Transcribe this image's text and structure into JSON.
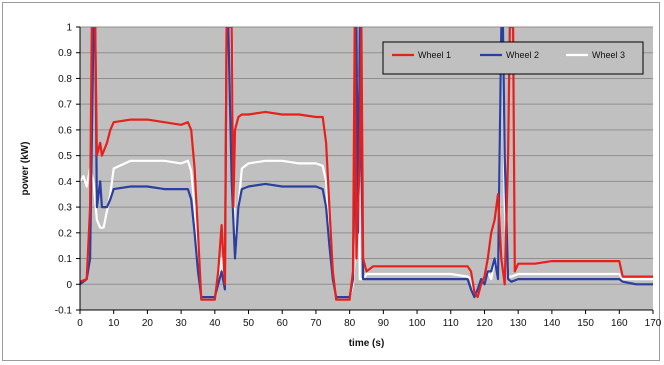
{
  "chart_data": {
    "type": "line",
    "title": "",
    "xlabel": "time (s)",
    "ylabel": "power (kW)",
    "xlim": [
      0,
      170
    ],
    "ylim": [
      -0.1,
      1
    ],
    "xticks": [
      0,
      10,
      20,
      30,
      40,
      50,
      60,
      70,
      80,
      90,
      100,
      110,
      120,
      130,
      140,
      150,
      160,
      170
    ],
    "yticks": [
      -0.1,
      0,
      0.1,
      0.2,
      0.3,
      0.4,
      0.5,
      0.6,
      0.7,
      0.8,
      0.9,
      1
    ],
    "ytick_labels": [
      "-0.1",
      "0",
      "0.1",
      "0.2",
      "0.3",
      "0.4",
      "0.5",
      "0.6",
      "0.7",
      "0.8",
      "0.9",
      "1"
    ],
    "grid": "horizontal",
    "legend_position": "top-right",
    "plot_background": "#c0c0c0",
    "series": [
      {
        "name": "Wheel 1",
        "color": "#e8201c",
        "x": [
          0,
          2,
          3,
          3.5,
          4.5,
          5,
          6,
          6.5,
          8,
          9,
          10,
          15,
          20,
          25,
          30,
          32,
          33,
          34,
          35,
          36,
          40,
          41,
          42,
          43,
          43.5,
          44,
          45,
          45.5,
          46,
          47,
          48,
          50,
          55,
          60,
          65,
          70,
          72,
          73,
          74,
          75,
          76,
          80,
          81,
          81.5,
          82,
          83,
          83.5,
          84,
          85,
          86,
          87,
          90,
          100,
          110,
          115,
          116,
          117,
          118,
          119,
          120,
          121,
          122,
          123,
          124,
          125,
          126,
          127,
          127.5,
          128,
          128.5,
          129,
          130,
          135,
          140,
          150,
          160,
          161,
          165,
          170
        ],
        "y": [
          0.01,
          0.02,
          0.3,
          1.0,
          1.0,
          0.5,
          0.55,
          0.5,
          0.55,
          0.6,
          0.63,
          0.64,
          0.64,
          0.63,
          0.62,
          0.63,
          0.6,
          0.45,
          0.2,
          -0.06,
          -0.06,
          0.05,
          0.23,
          0.0,
          1.0,
          1.0,
          1.0,
          0.3,
          0.6,
          0.65,
          0.66,
          0.66,
          0.67,
          0.66,
          0.66,
          0.65,
          0.65,
          0.55,
          0.3,
          0.05,
          -0.06,
          -0.06,
          0.05,
          1.0,
          0.1,
          0.5,
          1.0,
          0.1,
          0.05,
          0.06,
          0.07,
          0.07,
          0.07,
          0.07,
          0.07,
          0.05,
          -0.03,
          -0.05,
          0.0,
          0.03,
          0.1,
          0.2,
          0.25,
          0.35,
          0.1,
          0.0,
          0.5,
          1.0,
          1.0,
          1.0,
          0.05,
          0.08,
          0.08,
          0.09,
          0.09,
          0.09,
          0.03,
          0.03,
          0.03
        ]
      },
      {
        "name": "Wheel 2",
        "color": "#2b3f9e",
        "x": [
          0,
          2,
          3,
          4,
          4.5,
          5,
          6,
          6.5,
          8,
          9,
          10,
          15,
          20,
          25,
          30,
          32,
          33,
          34,
          35,
          36,
          40,
          41,
          42,
          43,
          43.5,
          44,
          45,
          46,
          47,
          48,
          50,
          55,
          60,
          65,
          70,
          72,
          73,
          74,
          75,
          76,
          80,
          81,
          82,
          82.5,
          83,
          84,
          85,
          90,
          100,
          110,
          115,
          116,
          117,
          118,
          119,
          120,
          121,
          122,
          123,
          124,
          124.5,
          125,
          125.5,
          126,
          127,
          128,
          130,
          140,
          150,
          160,
          161,
          165,
          170
        ],
        "y": [
          0.0,
          0.02,
          0.1,
          1.0,
          1.0,
          0.3,
          0.4,
          0.3,
          0.3,
          0.33,
          0.37,
          0.38,
          0.38,
          0.37,
          0.37,
          0.37,
          0.33,
          0.2,
          0.05,
          -0.05,
          -0.05,
          0.0,
          0.05,
          -0.02,
          1.0,
          1.0,
          0.4,
          0.1,
          0.3,
          0.37,
          0.38,
          0.39,
          0.38,
          0.38,
          0.38,
          0.37,
          0.3,
          0.15,
          0.02,
          -0.05,
          -0.05,
          0.02,
          1.0,
          0.2,
          1.0,
          0.02,
          0.02,
          0.02,
          0.02,
          0.02,
          0.02,
          -0.02,
          -0.05,
          -0.02,
          0.02,
          0.0,
          0.05,
          0.05,
          0.1,
          0.02,
          0.5,
          1.0,
          1.0,
          0.5,
          0.02,
          0.01,
          0.02,
          0.02,
          0.02,
          0.02,
          0.01,
          0.0,
          0.0
        ]
      },
      {
        "name": "Wheel 3",
        "color": "#ffffff",
        "x": [
          0,
          1,
          2,
          3,
          4,
          5,
          6,
          7,
          9,
          10,
          15,
          20,
          25,
          30,
          32,
          33,
          34,
          35,
          36,
          40,
          41,
          42,
          43,
          43.5,
          44,
          45,
          46,
          47,
          48,
          50,
          55,
          60,
          65,
          70,
          72,
          73,
          74,
          75,
          76,
          80,
          81,
          82,
          82.5,
          83,
          84,
          85,
          90,
          100,
          110,
          115,
          116,
          117,
          118,
          119,
          120,
          121,
          122,
          123,
          124,
          124.5,
          125,
          125.5,
          126,
          127,
          128,
          130,
          140,
          150,
          160,
          161,
          165,
          170
        ],
        "y": [
          0.4,
          0.42,
          0.38,
          0.45,
          0.4,
          0.25,
          0.22,
          0.22,
          0.35,
          0.45,
          0.48,
          0.48,
          0.48,
          0.47,
          0.48,
          0.44,
          0.3,
          0.1,
          -0.05,
          -0.05,
          0.0,
          0.1,
          0.0,
          1.0,
          1.0,
          1.0,
          0.1,
          0.3,
          0.45,
          0.47,
          0.48,
          0.48,
          0.47,
          0.47,
          0.46,
          0.4,
          0.2,
          0.03,
          -0.05,
          -0.05,
          0.0,
          0.2,
          0.8,
          0.02,
          0.02,
          0.04,
          0.04,
          0.04,
          0.04,
          0.03,
          0.02,
          -0.03,
          -0.05,
          0.0,
          0.03,
          0.05,
          0.02,
          0.1,
          0.03,
          0.4,
          1.0,
          1.0,
          0.3,
          0.03,
          0.03,
          0.04,
          0.04,
          0.04,
          0.04,
          0.02,
          0.02,
          0.02
        ]
      }
    ]
  }
}
